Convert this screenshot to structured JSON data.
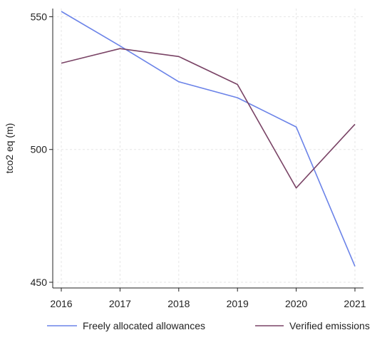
{
  "chart_data": {
    "type": "line",
    "x": [
      2016,
      2017,
      2018,
      2019,
      2020,
      2021
    ],
    "series": [
      {
        "name": "Freely allocated allowances",
        "color": "#6b83e8",
        "values": [
          552,
          539,
          525.5,
          519.5,
          508.5,
          456
        ]
      },
      {
        "name": "Verified emissions",
        "color": "#7a4466",
        "values": [
          532.5,
          538,
          535,
          524.5,
          485.5,
          509.5
        ]
      }
    ],
    "ylabel": "tco2 eq (m)",
    "xlabel": "",
    "ylim": [
      450,
      552
    ],
    "yticks": [
      450,
      500,
      550
    ],
    "xticks": [
      "2016",
      "2017",
      "2018",
      "2019",
      "2020",
      "2021"
    ],
    "grid": true,
    "legend_position": "bottom"
  }
}
